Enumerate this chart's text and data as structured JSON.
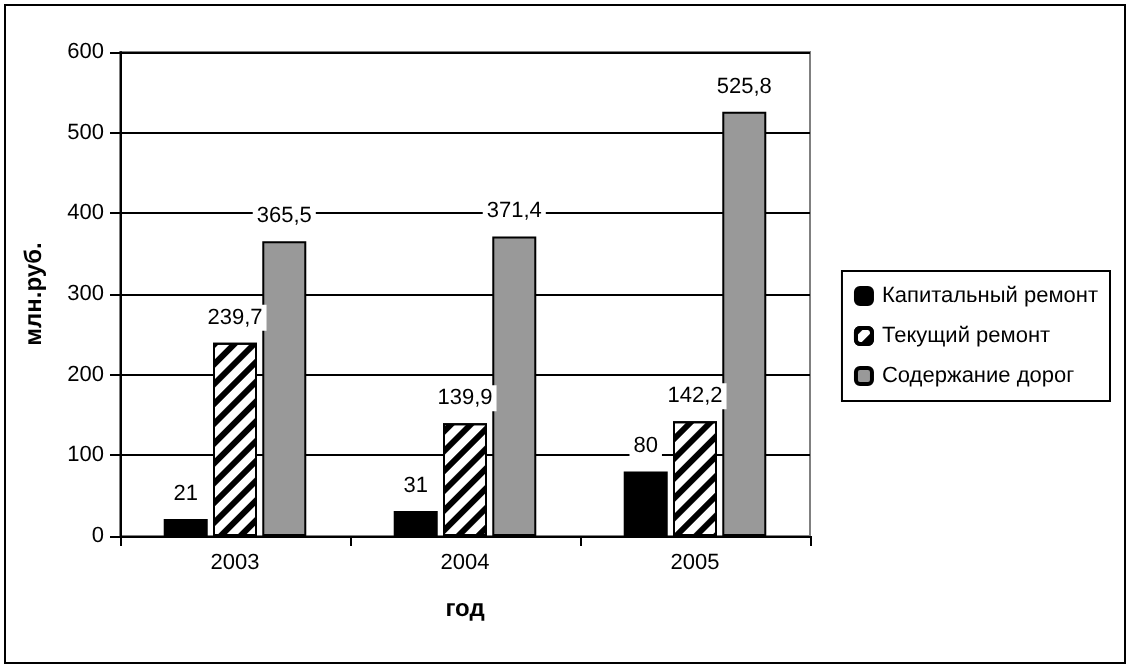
{
  "chart_data": {
    "type": "bar",
    "xlabel": "год",
    "ylabel": "млн.руб.",
    "categories": [
      "2003",
      "2004",
      "2005"
    ],
    "series": [
      {
        "name": "Капитальный ремонт",
        "color": "#000000",
        "values": [
          21,
          31,
          80
        ],
        "value_labels": [
          "21",
          "31",
          "80"
        ]
      },
      {
        "name": "Текущий ремонт",
        "color": "#ffffff",
        "values": [
          239.7,
          139.9,
          142.2
        ],
        "value_labels": [
          "239,7",
          "139,9",
          "142,2"
        ]
      },
      {
        "name": "Содержание дорог",
        "color": "#999999",
        "values": [
          365.5,
          371.4,
          525.8
        ],
        "value_labels": [
          "365,5",
          "371,4",
          "525,8"
        ]
      }
    ],
    "ylim": [
      0,
      600
    ],
    "yticks": [
      0,
      100,
      200,
      300,
      400,
      500,
      600
    ],
    "grid": "y",
    "legend": "right"
  }
}
